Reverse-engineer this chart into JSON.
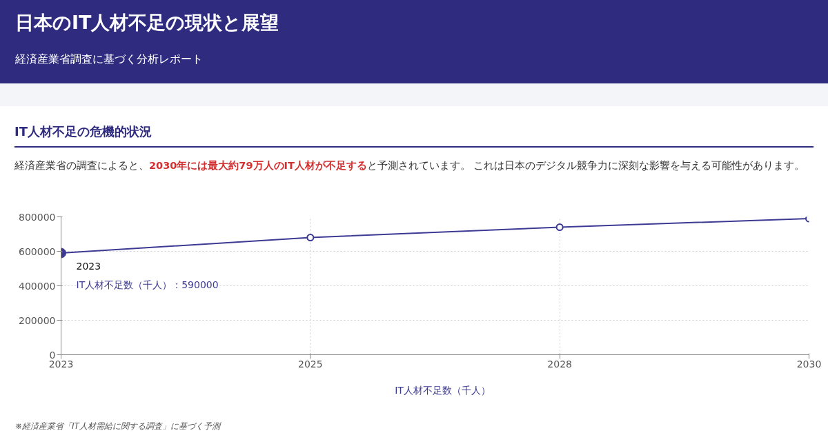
{
  "chart_data": {
    "type": "line",
    "title": "日本のIT人材不足の現状と展望",
    "subtitle": "経済産業省調査に基づく分析レポート",
    "annotations": [
      "IT人材不足の危機的状況",
      "経済産業省の調査によると、",
      "2030年には最大約79万人のIT人材が不足する",
      "と予測されています。 これは日本のデジタル競争力に深刻な影響を与える可能性があります。",
      "※経済産業省「IT人材需給に関する調査」に基づく予測",
      {
        "text": "2023",
        "x": "2023",
        "y": 590000
      },
      "IT人材不足数（千人）：590000"
    ],
    "categories": [
      "2023",
      "2025",
      "2028",
      "2030"
    ],
    "series": [
      {
        "name": "IT人材不足数（千人）",
        "color": "#3d3a94",
        "values": [
          590000,
          680000,
          740000,
          790000
        ]
      }
    ],
    "ylim": [
      0,
      800000
    ],
    "yticks": [
      0,
      200000,
      400000,
      600000,
      800000
    ],
    "grid": true,
    "legend": "bottom",
    "marker": "circle",
    "line_style": "solid"
  }
}
